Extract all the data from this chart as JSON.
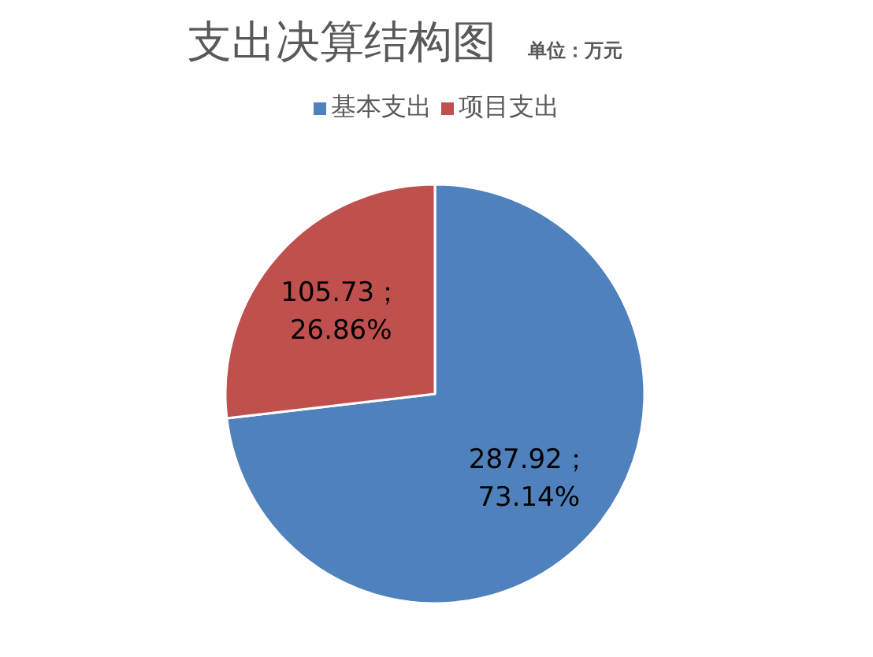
{
  "chart_data": {
    "type": "pie",
    "title": "支出决算结构图",
    "subtitle": "单位：万元",
    "categories": [
      "基本支出",
      "项目支出"
    ],
    "values": [
      287.92,
      105.73
    ],
    "colors": [
      "#4f81bd",
      "#c0504d"
    ],
    "value_labels": [
      "287.92；\n73.14%",
      "105.73；\n26.86%"
    ],
    "legend": "top"
  }
}
